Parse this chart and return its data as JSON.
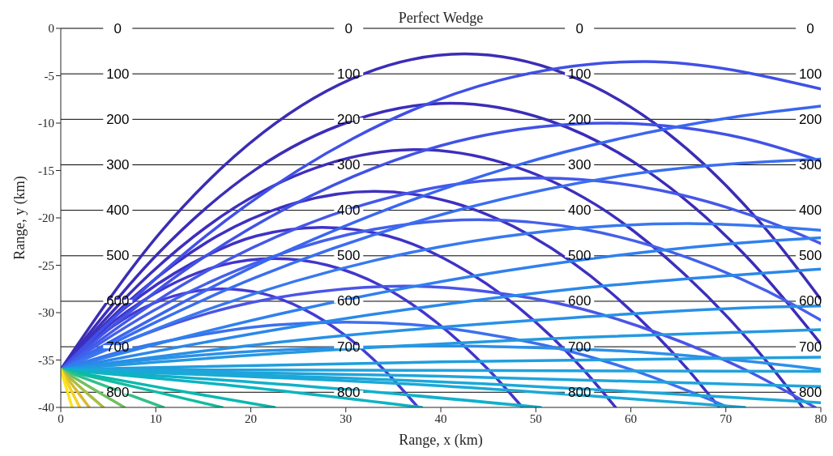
{
  "chart_data": {
    "type": "line",
    "title": "Perfect Wedge",
    "xlabel": "Range, x (km)",
    "ylabel": "Range, y (km)",
    "xlim": [
      0,
      80
    ],
    "xticks": [
      0,
      10,
      20,
      30,
      40,
      50,
      60,
      70,
      80
    ],
    "ylim": [
      -40,
      0
    ],
    "yticks": [
      0,
      -5,
      -10,
      -15,
      -20,
      -25,
      -30,
      -35,
      -40
    ],
    "grid": false,
    "ref_lines": [
      {
        "axis": "y",
        "value": 0,
        "color": "#000000"
      },
      {
        "axis": "y",
        "value": -4.8,
        "color": "#000000"
      },
      {
        "axis": "y",
        "value": -9.6,
        "color": "#000000"
      },
      {
        "axis": "y",
        "value": -14.4,
        "color": "#000000"
      },
      {
        "axis": "y",
        "value": -19.2,
        "color": "#000000"
      },
      {
        "axis": "y",
        "value": -24,
        "color": "#000000"
      },
      {
        "axis": "y",
        "value": -28.8,
        "color": "#000000"
      },
      {
        "axis": "y",
        "value": -33.6,
        "color": "#000000"
      },
      {
        "axis": "y",
        "value": -38.4,
        "color": "#000000"
      }
    ],
    "annotations": [
      {
        "text": "0",
        "x": 6,
        "y": 0
      },
      {
        "text": "0",
        "x": 30.3,
        "y": 0
      },
      {
        "text": "0",
        "x": 54.6,
        "y": 0
      },
      {
        "text": "0",
        "x": 78.9,
        "y": 0
      },
      {
        "text": "100",
        "x": 6,
        "y": -4.8
      },
      {
        "text": "100",
        "x": 30.3,
        "y": -4.8
      },
      {
        "text": "100",
        "x": 54.6,
        "y": -4.8
      },
      {
        "text": "100",
        "x": 78.9,
        "y": -4.8
      },
      {
        "text": "200",
        "x": 6,
        "y": -9.6
      },
      {
        "text": "200",
        "x": 30.3,
        "y": -9.6
      },
      {
        "text": "200",
        "x": 54.6,
        "y": -9.6
      },
      {
        "text": "200",
        "x": 78.9,
        "y": -9.6
      },
      {
        "text": "300",
        "x": 6,
        "y": -14.4
      },
      {
        "text": "300",
        "x": 30.3,
        "y": -14.4
      },
      {
        "text": "300",
        "x": 54.6,
        "y": -14.4
      },
      {
        "text": "300",
        "x": 78.9,
        "y": -14.4
      },
      {
        "text": "400",
        "x": 6,
        "y": -19.2
      },
      {
        "text": "400",
        "x": 30.3,
        "y": -19.2
      },
      {
        "text": "400",
        "x": 54.6,
        "y": -19.2
      },
      {
        "text": "400",
        "x": 78.9,
        "y": -19.2
      },
      {
        "text": "500",
        "x": 6,
        "y": -24
      },
      {
        "text": "500",
        "x": 30.3,
        "y": -24
      },
      {
        "text": "500",
        "x": 54.6,
        "y": -24
      },
      {
        "text": "500",
        "x": 78.9,
        "y": -24
      },
      {
        "text": "600",
        "x": 6,
        "y": -28.8
      },
      {
        "text": "600",
        "x": 30.3,
        "y": -28.8
      },
      {
        "text": "600",
        "x": 54.6,
        "y": -28.8
      },
      {
        "text": "600",
        "x": 78.9,
        "y": -28.8
      },
      {
        "text": "700",
        "x": 6,
        "y": -33.6
      },
      {
        "text": "700",
        "x": 30.3,
        "y": -33.6
      },
      {
        "text": "700",
        "x": 54.6,
        "y": -33.6
      },
      {
        "text": "700",
        "x": 78.9,
        "y": -33.6
      },
      {
        "text": "800",
        "x": 6,
        "y": -38.4
      },
      {
        "text": "800",
        "x": 30.3,
        "y": -38.4
      },
      {
        "text": "800",
        "x": 54.6,
        "y": -38.4
      },
      {
        "text": "800",
        "x": 78.9,
        "y": -38.4
      }
    ],
    "series": [
      {
        "color": "#3b2db5",
        "x": [
          0,
          10.6,
          21.3,
          31.9,
          42.5,
          53.1,
          63.8,
          74.4,
          80
        ],
        "values": [
          -36,
          -21.4,
          -11,
          -4.8,
          -2.7,
          -4.8,
          -11,
          -21.4,
          -28.6
        ]
      },
      {
        "color": "#3b2db8",
        "x": [
          0,
          10.3,
          20.5,
          30.8,
          41,
          51.3,
          61.5,
          71.8,
          80
        ],
        "values": [
          -36,
          -23.7,
          -14.9,
          -9.7,
          -7.9,
          -9.7,
          -14.9,
          -23.7,
          -33.3
        ]
      },
      {
        "color": "#3d2fbc",
        "x": [
          0,
          9.4,
          18.8,
          28.1,
          37.5,
          46.9,
          56.3,
          65.6,
          75,
          78.1
        ],
        "values": [
          -36,
          -25.9,
          -18.6,
          -14.3,
          -12.8,
          -14.3,
          -18.6,
          -25.9,
          -36,
          -40
        ]
      },
      {
        "color": "#3e30c0",
        "x": [
          0,
          8.3,
          16.5,
          24.8,
          33,
          41.3,
          49.5,
          57.8,
          66,
          69.3
        ],
        "values": [
          -36,
          -27.8,
          -21.9,
          -18.4,
          -17.2,
          -18.4,
          -21.9,
          -27.8,
          -36,
          -40
        ]
      },
      {
        "color": "#4032c6",
        "x": [
          0,
          6.9,
          13.8,
          20.6,
          27.5,
          34.4,
          41.3,
          48.1,
          55,
          58.4
        ],
        "values": [
          -36,
          -29.4,
          -24.8,
          -21.9,
          -21,
          -21.9,
          -24.8,
          -29.4,
          -36,
          -40
        ]
      },
      {
        "color": "#4236cc",
        "x": [
          0,
          5.6,
          11.3,
          16.9,
          22.5,
          28.1,
          33.8,
          39.4,
          45,
          48.6
        ],
        "values": [
          -36,
          -30.9,
          -27.2,
          -25,
          -24.3,
          -25,
          -27.2,
          -30.9,
          -36,
          -40
        ]
      },
      {
        "color": "#443cd4",
        "x": [
          0,
          4.3,
          8.5,
          12.8,
          17,
          21.3,
          25.5,
          29.8,
          34,
          37.6
        ],
        "values": [
          -36,
          -32.3,
          -29.6,
          -28,
          -27.5,
          -28,
          -29.6,
          -32.3,
          -36,
          -40
        ]
      },
      {
        "color": "#4050e6",
        "x": [
          0,
          15.4,
          30.8,
          46.1,
          61.5,
          80
        ],
        "values": [
          -36,
          -21.8,
          -11.6,
          -5.5,
          -3.5,
          -6.4
        ]
      },
      {
        "color": "#4152e6",
        "x": [
          0,
          14.4,
          28.8,
          43.1,
          57.5,
          71.9,
          80
        ],
        "values": [
          -36,
          -24.6,
          -16.5,
          -11.6,
          -10,
          -11.6,
          -14
        ]
      },
      {
        "color": "#4458e8",
        "x": [
          0,
          12.6,
          25.3,
          37.9,
          50.5,
          63.1,
          75.8,
          80
        ],
        "values": [
          -36,
          -27.2,
          -20.9,
          -17.1,
          -15.8,
          -17.1,
          -20.9,
          -22.7
        ]
      },
      {
        "color": "#4460ea",
        "x": [
          0,
          11,
          22,
          33,
          44,
          55,
          66,
          77,
          80
        ],
        "values": [
          -36,
          -29.1,
          -24.2,
          -21.2,
          -20.2,
          -21.2,
          -24.2,
          -29.1,
          -30.8
        ]
      },
      {
        "color": "#4a55e6",
        "x": [
          0,
          9,
          18,
          27,
          36,
          45,
          54,
          63,
          72,
          79.4
        ],
        "values": [
          -36,
          -32.2,
          -29.4,
          -27.8,
          -27.2,
          -27.8,
          -29.4,
          -32.2,
          -36,
          -40
        ]
      },
      {
        "color": "#3c70ee",
        "x": [
          0,
          7.5,
          15,
          22.5,
          30,
          37.5,
          45,
          52.5,
          60,
          70.3
        ],
        "values": [
          -36,
          -33.8,
          -32.3,
          -31.3,
          -31,
          -31.3,
          -32.3,
          -33.8,
          -36,
          -40
        ]
      },
      {
        "color": "#2c90e8",
        "x": [
          0,
          10,
          20,
          30,
          40,
          50,
          60,
          70,
          80
        ],
        "values": [
          -36,
          -34.9,
          -34.1,
          -33.7,
          -33.5,
          -33.7,
          -34.1,
          -34.9,
          -36
        ]
      },
      {
        "color": "#3a66f0",
        "x": [
          0,
          23.8,
          47.5,
          71.3,
          80
        ],
        "values": [
          -36,
          -23.5,
          -14.6,
          -9.3,
          -8.2
        ]
      },
      {
        "color": "#3a6ef0",
        "x": [
          0,
          20.5,
          41,
          61.5,
          80
        ],
        "values": [
          -36,
          -26.3,
          -19.4,
          -15.2,
          -13.8
        ]
      },
      {
        "color": "#3878f0",
        "x": [
          0,
          16.5,
          33,
          49.5,
          66,
          80
        ],
        "values": [
          -36,
          -29.3,
          -24.5,
          -21.6,
          -20.6,
          -21.3
        ]
      },
      {
        "color": "#3080ee",
        "x": [
          0,
          25,
          50,
          75,
          80
        ],
        "values": [
          -36,
          -29.7,
          -25.1,
          -22.4,
          -22.1
        ]
      },
      {
        "color": "#2a88ea",
        "x": [
          0,
          27.5,
          55,
          80
        ],
        "values": [
          -36,
          -31,
          -27.4,
          -25.4
        ]
      },
      {
        "color": "#2890e6",
        "x": [
          0,
          25,
          50,
          75,
          80
        ],
        "values": [
          -36,
          -32.9,
          -30.8,
          -29.4,
          -29.3
        ]
      },
      {
        "color": "#2499e0",
        "x": [
          0,
          27.5,
          55,
          80
        ],
        "values": [
          -36,
          -34,
          -32.6,
          -31.8
        ]
      },
      {
        "color": "#209ede",
        "x": [
          0,
          40,
          80
        ],
        "values": [
          -36,
          -35.2,
          -34.7
        ]
      },
      {
        "color": "#20a2dc",
        "x": [
          0,
          40,
          80
        ],
        "values": [
          -36,
          -36.1,
          -36.2
        ]
      },
      {
        "color": "#20a4dc",
        "x": [
          0,
          40,
          80
        ],
        "values": [
          -36,
          -36.7,
          -37.8
        ]
      },
      {
        "color": "#1ba8d8",
        "x": [
          0,
          40,
          80
        ],
        "values": [
          -36,
          -37.3,
          -39.5
        ]
      },
      {
        "color": "#1ca8d6",
        "x": [
          0,
          36,
          72
        ],
        "values": [
          -36,
          -37.5,
          -40
        ]
      },
      {
        "color": "#10b0cc",
        "x": [
          0,
          25,
          50.5
        ],
        "values": [
          -36,
          -37.7,
          -40
        ]
      },
      {
        "color": "#0cb4c0",
        "x": [
          0,
          19,
          38
        ],
        "values": [
          -36,
          -37.8,
          -40
        ]
      },
      {
        "color": "#08b8b0",
        "x": [
          0,
          11,
          22.5
        ],
        "values": [
          -36,
          -38,
          -40
        ]
      },
      {
        "color": "#10bca0",
        "x": [
          0,
          8.5,
          17
        ],
        "values": [
          -36,
          -38,
          -40
        ]
      },
      {
        "color": "#30c088",
        "x": [
          0,
          5.4,
          10.8
        ],
        "values": [
          -36,
          -38,
          -40
        ]
      },
      {
        "color": "#70c060",
        "x": [
          0,
          3.3,
          6.7
        ],
        "values": [
          -36,
          -38,
          -40
        ]
      },
      {
        "color": "#a8be40",
        "x": [
          0,
          2.2,
          4.5
        ],
        "values": [
          -36,
          -38,
          -40
        ]
      },
      {
        "color": "#d8ba30",
        "x": [
          0,
          1.5,
          3
        ],
        "values": [
          -36,
          -38,
          -40
        ]
      },
      {
        "color": "#f8d020",
        "x": [
          0,
          1,
          2
        ],
        "values": [
          -36,
          -38,
          -40
        ]
      },
      {
        "color": "#f9e51e",
        "x": [
          0,
          0.6,
          1.2
        ],
        "values": [
          -36,
          -38,
          -40
        ]
      }
    ]
  }
}
